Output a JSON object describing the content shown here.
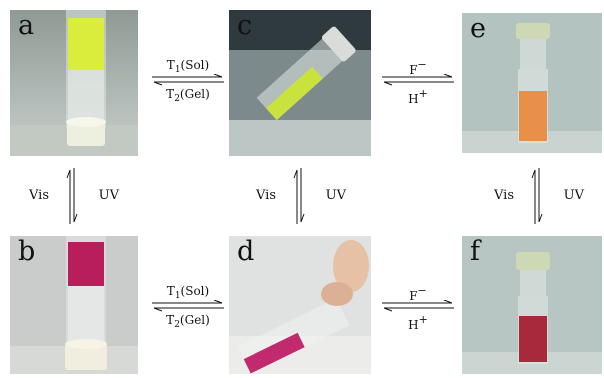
{
  "panels": {
    "a": "a",
    "b": "b",
    "c": "c",
    "d": "d",
    "e": "e",
    "f": "f"
  },
  "arrows": {
    "ac_top": "T",
    "ac_top_sub": "1",
    "ac_top_rest": "(Sol)",
    "ac_bot": "T",
    "ac_bot_sub": "2",
    "ac_bot_rest": "(Gel)",
    "bd_top": "T",
    "bd_top_sub": "1",
    "bd_top_rest": "(Sol)",
    "bd_bot": "T",
    "bd_bot_sub": "2",
    "bd_bot_rest": "(Gel)",
    "ce_top": "F",
    "ce_top_sup": "−",
    "ce_bot": "H",
    "ce_bot_sup": "+",
    "df_top": "F",
    "df_top_sup": "−",
    "df_bot": "H",
    "df_bot_sup": "+"
  },
  "vertical": {
    "left_vis": "Vis",
    "left_uv": "UV",
    "mid_vis": "Vis",
    "mid_uv": "UV",
    "right_vis": "Vis",
    "right_uv": "UV"
  },
  "colors": {
    "yellow_gel": "#d8ee3a",
    "yellow_solution": "#c9e23e",
    "orange_solution": "#e8904a",
    "magenta_gel": "#b81e5c",
    "magenta_solution": "#c22a6e",
    "red_solution": "#a8283c"
  }
}
